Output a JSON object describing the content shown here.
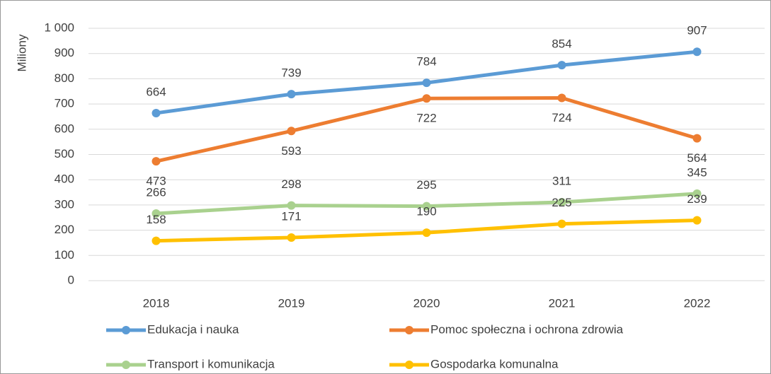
{
  "chart_data": {
    "type": "line",
    "y_label": "Miliony",
    "categories": [
      "2018",
      "2019",
      "2020",
      "2021",
      "2022"
    ],
    "series": [
      {
        "name": "Edukacja i nauka",
        "color": "#5b9bd5",
        "values": [
          664,
          739,
          784,
          854,
          907
        ],
        "label_position": "above"
      },
      {
        "name": "Pomoc społeczna i ochrona zdrowia",
        "color": "#ed7d31",
        "values": [
          473,
          593,
          722,
          724,
          564
        ],
        "label_position": "below"
      },
      {
        "name": "Transport i komunikacja",
        "color": "#a9d18e",
        "values": [
          266,
          298,
          295,
          311,
          345
        ],
        "label_position": "above"
      },
      {
        "name": "Gospodarka komunalna",
        "color": "#ffc000",
        "values": [
          158,
          171,
          190,
          225,
          239
        ],
        "label_position": "above"
      }
    ],
    "ylim": [
      0,
      1000
    ],
    "yticks": [
      0,
      100,
      200,
      300,
      400,
      500,
      600,
      700,
      800,
      900,
      {
        "value": 1000,
        "label": "1 000"
      }
    ],
    "grid": true,
    "legend": "bottom"
  }
}
